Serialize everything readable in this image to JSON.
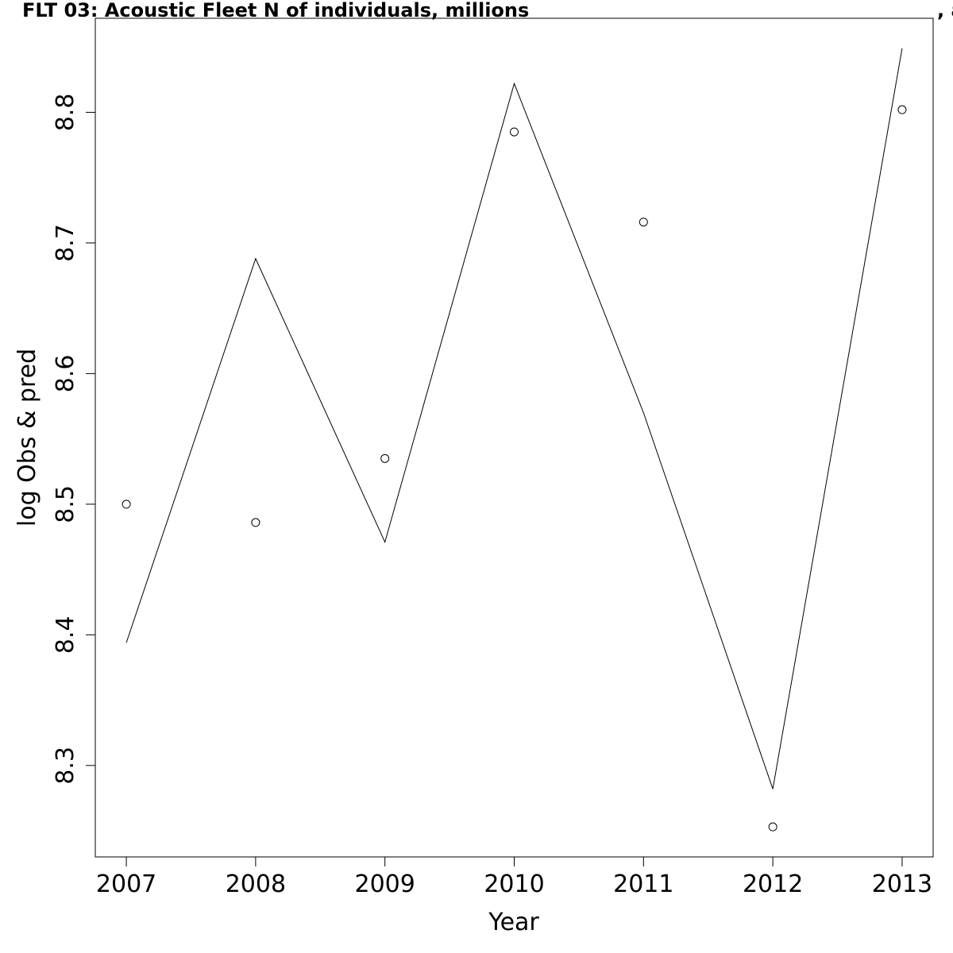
{
  "chart_data": {
    "type": "line",
    "title": "FLT 03: Acoustic Fleet   N of individuals, millions",
    "title_tail": ", a",
    "xlabel": "Year",
    "ylabel": "log Obs & pred",
    "x": [
      2007,
      2008,
      2009,
      2010,
      2011,
      2012,
      2013
    ],
    "series": [
      {
        "style": "points",
        "color": "#000000",
        "values": [
          8.5,
          8.486,
          8.535,
          8.785,
          8.716,
          8.253,
          8.802
        ]
      },
      {
        "style": "line",
        "color": "#000000",
        "values": [
          8.394,
          8.688,
          8.471,
          8.822,
          8.57,
          8.282,
          8.849
        ]
      }
    ],
    "xlim": [
      2006.76,
      2013.24
    ],
    "ylim": [
      8.23,
      8.872
    ],
    "xticks": [
      2007,
      2008,
      2009,
      2010,
      2011,
      2012,
      2013
    ],
    "yticks": [
      8.3,
      8.4,
      8.5,
      8.6,
      8.7,
      8.8
    ]
  }
}
